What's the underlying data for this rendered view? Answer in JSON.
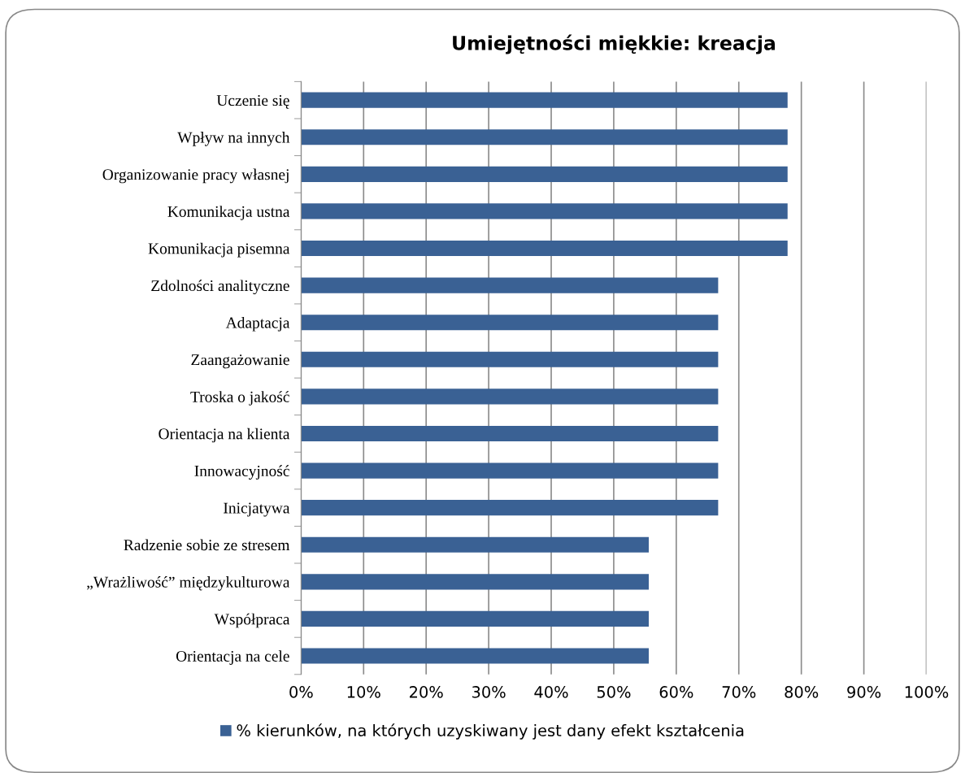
{
  "chart_data": {
    "type": "bar",
    "orientation": "horizontal",
    "title": "Umiejętności miękkie: kreacja",
    "categories": [
      "Uczenie się",
      "Wpływ na innych",
      "Organizowanie pracy własnej",
      "Komunikacja ustna",
      "Komunikacja pisemna",
      "Zdolności analityczne",
      "Adaptacja",
      "Zaangażowanie",
      "Troska o jakość",
      "Orientacja na klienta",
      "Innowacyjność",
      "Inicjatywa",
      "Radzenie sobie ze stresem",
      "„Wrażliwość” międzykulturowa",
      "Współpraca",
      "Orientacja na cele"
    ],
    "series": [
      {
        "name": "% kierunków, na których uzyskiwany jest dany efekt kształcenia",
        "color": "#3a6194",
        "values": [
          77.8,
          77.8,
          77.8,
          77.8,
          77.8,
          66.7,
          66.7,
          66.7,
          66.7,
          66.7,
          66.7,
          66.7,
          55.6,
          55.6,
          55.6,
          55.6
        ]
      }
    ],
    "xlim": [
      0,
      100
    ],
    "xticks": [
      {
        "value": 0,
        "label": "0%"
      },
      {
        "value": 10,
        "label": "10%"
      },
      {
        "value": 20,
        "label": "20%"
      },
      {
        "value": 30,
        "label": "30%"
      },
      {
        "value": 40,
        "label": "40%"
      },
      {
        "value": 50,
        "label": "50%"
      },
      {
        "value": 60,
        "label": "60%"
      },
      {
        "value": 70,
        "label": "70%"
      },
      {
        "value": 80,
        "label": "80%"
      },
      {
        "value": 90,
        "label": "90%"
      },
      {
        "value": 100,
        "label": "100%"
      }
    ],
    "grid": "x",
    "legend": "bottom"
  }
}
